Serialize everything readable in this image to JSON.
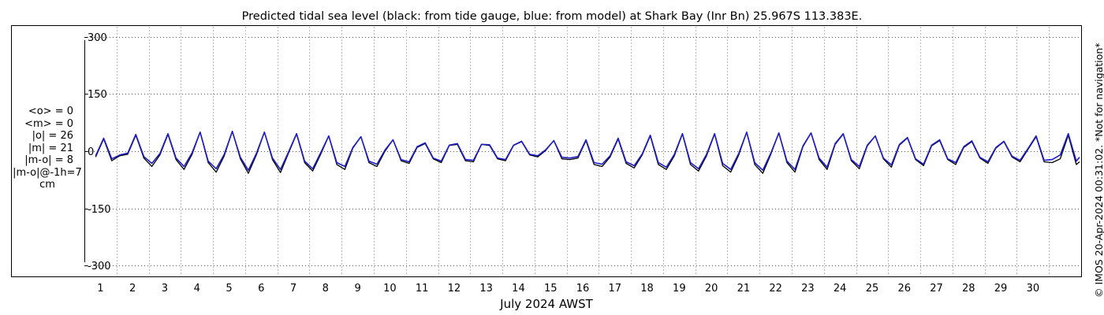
{
  "chart_data": {
    "type": "line",
    "title": "Predicted tidal sea level (black: from tide gauge, blue: from model) at Shark Bay (Inr Bn) 25.967S 113.383E.",
    "xlabel": "July 2024 AWST",
    "ylabel": "",
    "xlim": [
      0,
      31
    ],
    "ylim": [
      -310,
      310
    ],
    "yticks": [
      300,
      150,
      0,
      -150,
      -300
    ],
    "ytick_labels": [
      "300",
      "150",
      "0",
      "-150",
      "-300"
    ],
    "xticks": [
      1,
      2,
      3,
      4,
      5,
      6,
      7,
      8,
      9,
      10,
      11,
      12,
      13,
      14,
      15,
      16,
      17,
      18,
      19,
      20,
      21,
      22,
      23,
      24,
      25,
      26,
      27,
      28,
      29,
      30
    ],
    "xtick_labels": [
      "1",
      "2",
      "3",
      "4",
      "5",
      "6",
      "7",
      "8",
      "9",
      "10",
      "11",
      "12",
      "13",
      "14",
      "15",
      "16",
      "17",
      "18",
      "19",
      "20",
      "21",
      "22",
      "23",
      "24",
      "25",
      "26",
      "27",
      "28",
      "29",
      "30"
    ],
    "grid": true,
    "units": "cm",
    "series": [
      {
        "color": "#000000",
        "x": [
          0.35,
          0.6,
          0.85,
          1.1,
          1.35,
          1.6,
          1.85,
          2.1,
          2.35,
          2.6,
          2.85,
          3.1,
          3.35,
          3.6,
          3.85,
          4.1,
          4.35,
          4.6,
          4.85,
          5.1,
          5.35,
          5.6,
          5.85,
          6.1,
          6.35,
          6.6,
          6.85,
          7.1,
          7.35,
          7.6,
          7.85,
          8.1,
          8.35,
          8.6,
          8.85,
          9.1,
          9.35,
          9.6,
          9.85,
          10.1,
          10.35,
          10.6,
          10.85,
          11.1,
          11.35,
          11.6,
          11.85,
          12.1,
          12.35,
          12.6,
          12.85,
          13.1,
          13.35,
          13.6,
          13.85,
          14.1,
          14.35,
          14.6,
          14.85,
          15.1,
          15.35,
          15.6,
          15.85,
          16.1,
          16.35,
          16.6,
          16.85,
          17.1,
          17.35,
          17.6,
          17.85,
          18.1,
          18.35,
          18.6,
          18.85,
          19.1,
          19.35,
          19.6,
          19.85,
          20.1,
          20.35,
          20.6,
          20.85,
          21.1,
          21.35,
          21.6,
          21.85,
          22.1,
          22.35,
          22.6,
          22.85,
          23.1,
          23.35,
          23.6,
          23.85,
          24.1,
          24.35,
          24.6,
          24.85,
          25.1,
          25.35,
          25.6,
          25.85,
          26.1,
          26.35,
          26.6,
          26.85,
          27.1,
          27.35,
          27.6,
          27.85,
          28.1,
          28.35,
          28.6,
          28.85,
          29.1,
          29.35,
          29.6,
          29.85,
          30.1,
          30.35,
          30.6,
          30.85,
          30.95
        ],
        "y": [
          -15,
          32,
          -25,
          -12,
          -8,
          42,
          -18,
          -40,
          -10,
          44,
          -22,
          -48,
          -8,
          50,
          -30,
          -55,
          -12,
          52,
          -20,
          -58,
          -10,
          50,
          -22,
          -56,
          -5,
          45,
          -30,
          -52,
          -8,
          40,
          -35,
          -48,
          8,
          38,
          -30,
          -40,
          0,
          30,
          -25,
          -32,
          10,
          20,
          -20,
          -30,
          15,
          18,
          -25,
          -28,
          18,
          15,
          -20,
          -25,
          15,
          25,
          -10,
          -15,
          2,
          28,
          -20,
          -22,
          -18,
          28,
          -35,
          -40,
          -15,
          32,
          -32,
          -44,
          -10,
          40,
          -35,
          -48,
          -12,
          45,
          -35,
          -52,
          -12,
          45,
          -38,
          -55,
          -10,
          50,
          -35,
          -58,
          -8,
          48,
          -30,
          -55,
          12,
          48,
          -22,
          -48,
          18,
          45,
          -25,
          -46,
          14,
          40,
          -20,
          -42,
          16,
          35,
          -22,
          -38,
          14,
          28,
          -22,
          -35,
          10,
          25,
          -18,
          -32,
          8,
          25,
          -15,
          -28,
          5,
          38,
          -28,
          -30,
          -20,
          42,
          -35,
          -28
        ]
      },
      {
        "color": "#1e1ec8",
        "x": [
          0.35,
          0.6,
          0.85,
          1.1,
          1.35,
          1.6,
          1.85,
          2.1,
          2.35,
          2.6,
          2.85,
          3.1,
          3.35,
          3.6,
          3.85,
          4.1,
          4.35,
          4.6,
          4.85,
          5.1,
          5.35,
          5.6,
          5.85,
          6.1,
          6.35,
          6.6,
          6.85,
          7.1,
          7.35,
          7.6,
          7.85,
          8.1,
          8.35,
          8.6,
          8.85,
          9.1,
          9.35,
          9.6,
          9.85,
          10.1,
          10.35,
          10.6,
          10.85,
          11.1,
          11.35,
          11.6,
          11.85,
          12.1,
          12.35,
          12.6,
          12.85,
          13.1,
          13.35,
          13.6,
          13.85,
          14.1,
          14.35,
          14.6,
          14.85,
          15.1,
          15.35,
          15.6,
          15.85,
          16.1,
          16.35,
          16.6,
          16.85,
          17.1,
          17.35,
          17.6,
          17.85,
          18.1,
          18.35,
          18.6,
          18.85,
          19.1,
          19.35,
          19.6,
          19.85,
          20.1,
          20.35,
          20.6,
          20.85,
          21.1,
          21.35,
          21.6,
          21.85,
          22.1,
          22.35,
          22.6,
          22.85,
          23.1,
          23.35,
          23.6,
          23.85,
          24.1,
          24.35,
          24.6,
          24.85,
          25.1,
          25.35,
          25.6,
          25.85,
          26.1,
          26.35,
          26.6,
          26.85,
          27.1,
          27.35,
          27.6,
          27.85,
          28.1,
          28.35,
          28.6,
          28.85,
          29.1,
          29.35,
          29.6,
          29.85,
          30.1,
          30.35,
          30.6,
          30.85,
          30.95
        ],
        "y": [
          -12,
          34,
          -20,
          -10,
          -5,
          44,
          -14,
          -32,
          -6,
          46,
          -18,
          -40,
          -4,
          50,
          -26,
          -46,
          -8,
          52,
          -16,
          -50,
          -6,
          50,
          -18,
          -48,
          -2,
          46,
          -26,
          -46,
          -4,
          40,
          -30,
          -40,
          10,
          38,
          -26,
          -34,
          3,
          30,
          -22,
          -28,
          12,
          22,
          -18,
          -26,
          16,
          20,
          -22,
          -24,
          18,
          17,
          -18,
          -22,
          16,
          26,
          -8,
          -12,
          4,
          28,
          -16,
          -18,
          -14,
          30,
          -30,
          -34,
          -12,
          34,
          -28,
          -38,
          -7,
          42,
          -30,
          -42,
          -8,
          46,
          -30,
          -46,
          -8,
          46,
          -32,
          -48,
          -6,
          50,
          -30,
          -50,
          -5,
          48,
          -26,
          -48,
          14,
          48,
          -18,
          -42,
          20,
          46,
          -22,
          -40,
          16,
          40,
          -18,
          -36,
          18,
          36,
          -20,
          -34,
          16,
          30,
          -20,
          -30,
          12,
          27,
          -16,
          -28,
          10,
          26,
          -13,
          -24,
          7,
          40,
          -24,
          -22,
          -10,
          46,
          -26,
          -16
        ]
      }
    ]
  },
  "stats": {
    "mean_obs": "<o> = 0",
    "mean_model": "<m> = 0",
    "abs_obs": "|o| = 26",
    "abs_model": "|m| = 21",
    "abs_diff": "|m-o| = 8",
    "abs_diff_lag": "|m-o|@-1h=7",
    "units": "cm"
  },
  "copyright": "© IMOS 20-Apr-2024 00:31:02. *Not for navigation*",
  "colors": {
    "observed": "#000000",
    "model": "#1e1ec8",
    "grid": "#555555"
  }
}
